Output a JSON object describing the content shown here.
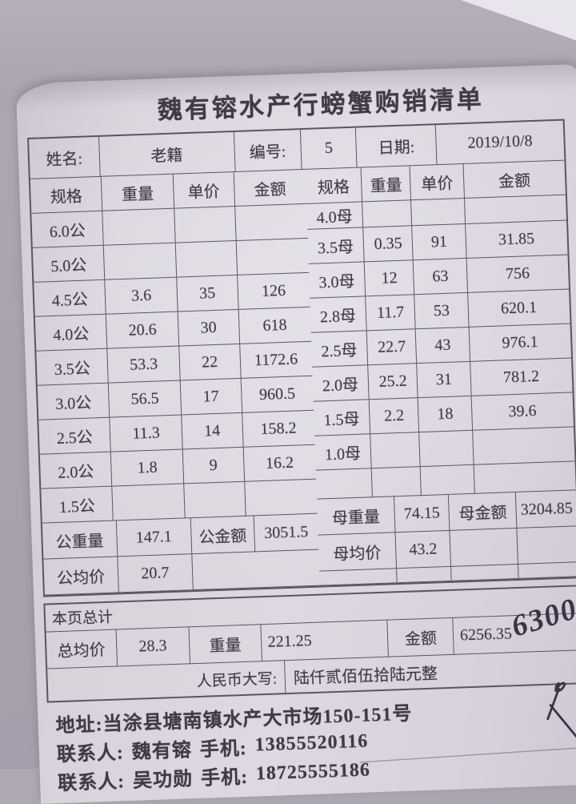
{
  "title": "魏有镕水产行螃蟹购销清单",
  "info": {
    "name_label": "姓名:",
    "name_value": "老籍",
    "no_label": "编号:",
    "no_value": "5",
    "date_label": "日期:",
    "date_value": "2019/10/8"
  },
  "columns": {
    "spec": "规格",
    "weight": "重量",
    "price": "单价",
    "amount": "金额"
  },
  "male": {
    "rows": [
      {
        "spec": "6.0公",
        "weight": "",
        "price": "",
        "amount": ""
      },
      {
        "spec": "5.0公",
        "weight": "",
        "price": "",
        "amount": ""
      },
      {
        "spec": "4.5公",
        "weight": "3.6",
        "price": "35",
        "amount": "126"
      },
      {
        "spec": "4.0公",
        "weight": "20.6",
        "price": "30",
        "amount": "618"
      },
      {
        "spec": "3.5公",
        "weight": "53.3",
        "price": "22",
        "amount": "1172.6"
      },
      {
        "spec": "3.0公",
        "weight": "56.5",
        "price": "17",
        "amount": "960.5"
      },
      {
        "spec": "2.5公",
        "weight": "11.3",
        "price": "14",
        "amount": "158.2"
      },
      {
        "spec": "2.0公",
        "weight": "1.8",
        "price": "9",
        "amount": "16.2"
      },
      {
        "spec": "1.5公",
        "weight": "",
        "price": "",
        "amount": ""
      }
    ],
    "weight_label": "公重量",
    "weight_total": "147.1",
    "amount_label": "公金额",
    "amount_total": "3051.5",
    "avg_label": "公均价",
    "avg_value": "20.7"
  },
  "female": {
    "rows": [
      {
        "spec": "4.0母",
        "weight": "",
        "price": "",
        "amount": ""
      },
      {
        "spec": "3.5母",
        "weight": "0.35",
        "price": "91",
        "amount": "31.85"
      },
      {
        "spec": "3.0母",
        "weight": "12",
        "price": "63",
        "amount": "756"
      },
      {
        "spec": "2.8母",
        "weight": "11.7",
        "price": "53",
        "amount": "620.1"
      },
      {
        "spec": "2.5母",
        "weight": "22.7",
        "price": "43",
        "amount": "976.1"
      },
      {
        "spec": "2.0母",
        "weight": "25.2",
        "price": "31",
        "amount": "781.2"
      },
      {
        "spec": "1.5母",
        "weight": "2.2",
        "price": "18",
        "amount": "39.6"
      },
      {
        "spec": "1.0母",
        "weight": "",
        "price": "",
        "amount": ""
      }
    ],
    "weight_label": "母重量",
    "weight_total": "74.15",
    "amount_label": "母金额",
    "amount_total": "3204.85",
    "avg_label": "母均价",
    "avg_value": "43.2"
  },
  "totals": {
    "section_label": "本页总计",
    "avg_label": "总均价",
    "avg_value": "28.3",
    "weight_label": "重量",
    "weight_value": "221.25",
    "amount_label": "金额",
    "amount_value": "6256.35",
    "words_label": "人民币大写:",
    "words_value": "陆仟贰佰伍拾陆元整"
  },
  "handwriting": {
    "amount": "6300",
    "mark": "check-mark"
  },
  "footer": {
    "address": "地址:当涂县塘南镇水产大市场150-151号",
    "contact_label": "联系人:",
    "phone_label": "手机:",
    "contact1_name": "魏有镕",
    "contact1_phone": "13855520116",
    "contact2_name": "吴功勋",
    "contact2_phone": "18725555186"
  },
  "colors": {
    "paper": "#d9d4dc",
    "background": "#a9a2ae",
    "ink": "#3f3a47",
    "grid_line": "#5b5563",
    "handwriting_ink": "#3a3448"
  }
}
